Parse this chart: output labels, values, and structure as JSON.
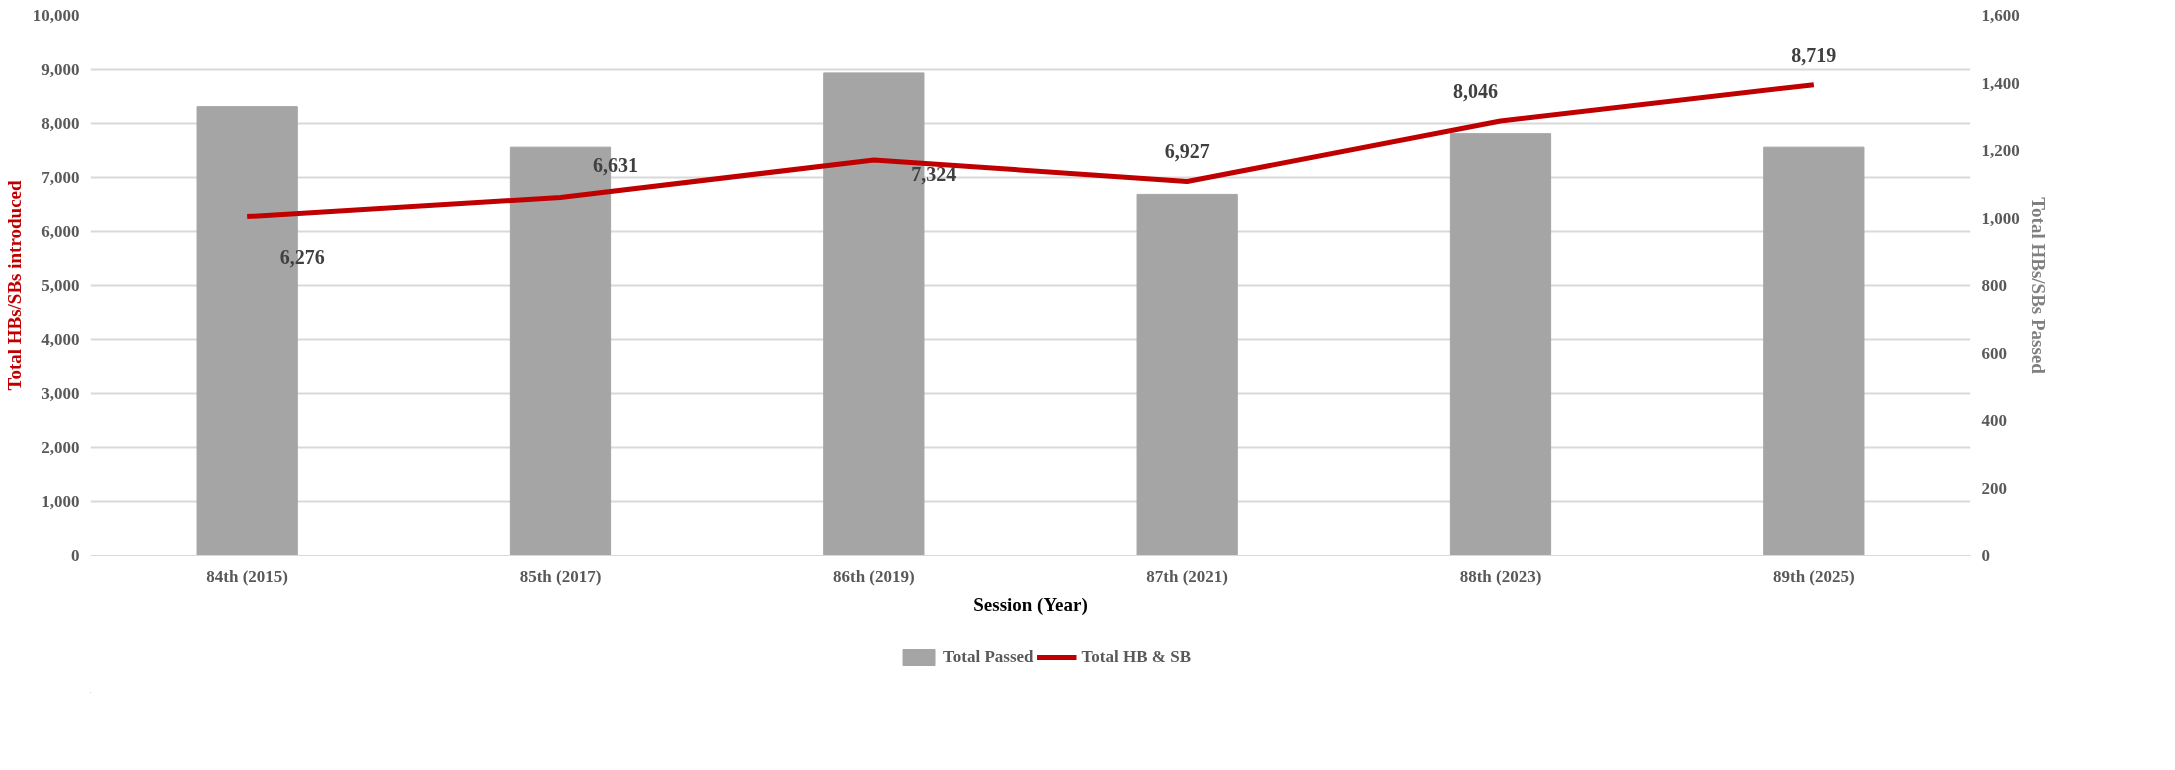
{
  "chart_data": {
    "type": "bar",
    "categories": [
      "84th (2015)",
      "85th (2017)",
      "86th (2019)",
      "87th (2021)",
      "88th (2023)",
      "89th (2025)"
    ],
    "xlabel": "Session (Year)",
    "ylabel": "Total HBs/SBs introduced",
    "y2label": "Total HBs/SBs Passed",
    "series": [
      {
        "name": "Total Passed",
        "axis": "y2",
        "color": "#a5a5a5",
        "values": [
          1330,
          1210,
          1430,
          1070,
          1250,
          1210
        ]
      },
      {
        "name": "Total HB & SB",
        "type": "line",
        "color": "#c00000",
        "values": [
          6276,
          6631,
          7324,
          6927,
          8046,
          8719
        ],
        "value_labels": [
          "6,276",
          "6,631",
          "7,324",
          "6,927",
          "8,046",
          "8,719"
        ]
      }
    ],
    "ylim": [
      0,
      10000
    ],
    "yticks": [
      {
        "value": 0,
        "label": "0"
      },
      {
        "value": 1000,
        "label": "1,000"
      },
      {
        "value": 2000,
        "label": "2,000"
      },
      {
        "value": 3000,
        "label": "3,000"
      },
      {
        "value": 4000,
        "label": "4,000"
      },
      {
        "value": 5000,
        "label": "5,000"
      },
      {
        "value": 6000,
        "label": "6,000"
      },
      {
        "value": 7000,
        "label": "7,000"
      },
      {
        "value": 8000,
        "label": "8,000"
      },
      {
        "value": 9000,
        "label": "9,000"
      },
      {
        "value": 10000,
        "label": "10,000"
      }
    ],
    "y2lim": [
      0,
      1600
    ],
    "y2ticks": [
      0,
      200,
      400,
      600,
      800,
      {
        "value": 1000,
        "label": "1,000"
      },
      {
        "value": 1200,
        "label": "1,200"
      },
      {
        "value": 1400,
        "label": "1,400"
      },
      {
        "value": 1600,
        "label": "1,600"
      }
    ],
    "grid": "y",
    "legend": "bottom"
  }
}
